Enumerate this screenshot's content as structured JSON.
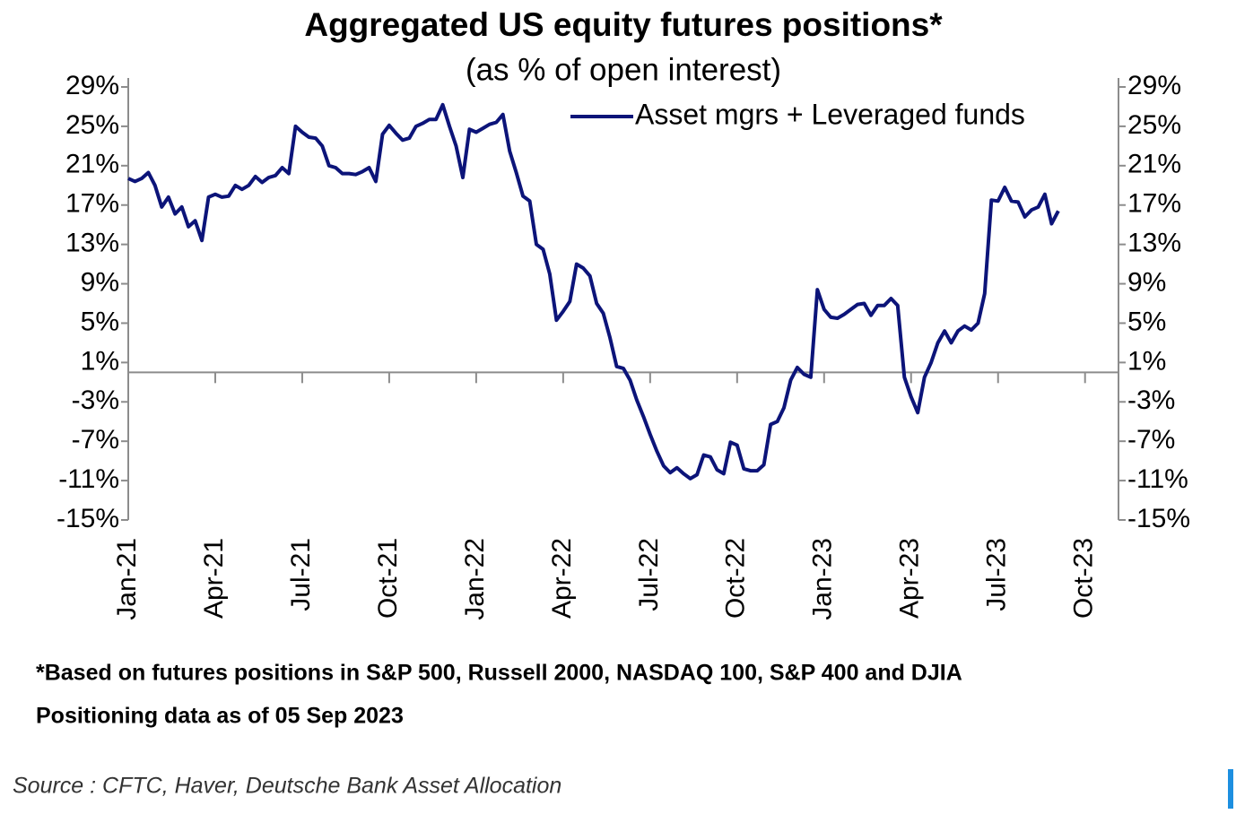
{
  "chart_data": {
    "type": "line",
    "title": "Aggregated US equity futures positions*",
    "subtitle": "(as % of open interest)",
    "categories": [
      "Jan-21",
      null,
      null,
      null,
      null,
      null,
      null,
      null,
      null,
      null,
      null,
      null,
      null,
      "Apr-21",
      null,
      null,
      null,
      null,
      null,
      null,
      null,
      null,
      null,
      null,
      null,
      null,
      "Jul-21",
      null,
      null,
      null,
      null,
      null,
      null,
      null,
      null,
      null,
      null,
      null,
      null,
      "Oct-21",
      null,
      null,
      null,
      null,
      null,
      null,
      null,
      null,
      null,
      null,
      null,
      null,
      "Jan-22",
      null,
      null,
      null,
      null,
      null,
      null,
      null,
      null,
      null,
      null,
      null,
      null,
      "Apr-22",
      null,
      null,
      null,
      null,
      null,
      null,
      null,
      null,
      null,
      null,
      null,
      null,
      "Jul-22",
      null,
      null,
      null,
      null,
      null,
      null,
      null,
      null,
      null,
      null,
      null,
      null,
      "Oct-22",
      null,
      null,
      null,
      null,
      null,
      null,
      null,
      null,
      null,
      null,
      null,
      null,
      "Jan-23",
      null,
      null,
      null,
      null,
      null,
      null,
      null,
      null,
      null,
      null,
      null,
      null,
      "Apr-23",
      null,
      null,
      null,
      null,
      null,
      null,
      null,
      null,
      null,
      null,
      null,
      null,
      "Jul-23",
      null,
      null,
      null,
      null,
      null,
      null,
      null,
      null,
      null,
      null,
      null,
      null,
      "Oct-23",
      null,
      null,
      null,
      null,
      null
    ],
    "series": [
      {
        "name": "Asset mgrs + Leveraged funds",
        "color": "#0c1479",
        "values": [
          19.7,
          19.4,
          19.7,
          20.3,
          19.0,
          16.8,
          17.8,
          16.1,
          16.8,
          14.8,
          15.4,
          13.4,
          17.8,
          18.1,
          17.8,
          17.9,
          19.0,
          18.6,
          19.0,
          19.9,
          19.3,
          19.8,
          20.0,
          20.8,
          20.2,
          25.0,
          24.4,
          23.9,
          23.8,
          23.0,
          21.0,
          20.8,
          20.2,
          20.2,
          20.1,
          20.4,
          20.8,
          19.4,
          24.2,
          25.1,
          24.3,
          23.6,
          23.8,
          25.0,
          25.3,
          25.7,
          25.7,
          27.2,
          25.0,
          23.0,
          19.8,
          24.7,
          24.4,
          24.8,
          25.2,
          25.4,
          26.2,
          22.5,
          20.3,
          17.9,
          17.4,
          13.0,
          12.5,
          10.0,
          5.3,
          6.2,
          7.2,
          11.0,
          10.6,
          9.8,
          7.0,
          6.0,
          3.5,
          0.6,
          0.4,
          -0.8,
          -2.8,
          -4.5,
          -6.3,
          -8.0,
          -9.5,
          -10.2,
          -9.7,
          -10.3,
          -10.8,
          -10.4,
          -8.4,
          -8.6,
          -9.9,
          -10.3,
          -7.1,
          -7.4,
          -9.8,
          -10.0,
          -10.0,
          -9.4,
          -5.3,
          -5.0,
          -3.6,
          -0.8,
          0.5,
          -0.2,
          -0.5,
          8.4,
          6.4,
          5.6,
          5.5,
          5.9,
          6.4,
          6.9,
          7.0,
          5.8,
          6.8,
          6.8,
          7.5,
          6.8,
          -0.5,
          -2.5,
          -4.1,
          -0.5,
          1.0,
          3.0,
          4.2,
          3.0,
          4.2,
          4.7,
          4.3,
          5.0,
          8.0,
          17.5,
          17.4,
          18.8,
          17.4,
          17.3,
          15.8,
          16.5,
          16.8,
          18.1,
          15.1,
          16.4,
          null,
          null,
          null,
          null,
          null,
          null,
          null,
          null,
          null
        ]
      }
    ],
    "ylim": [
      -15,
      29
    ],
    "yticks": [
      {
        "value": 29,
        "label": "29%"
      },
      {
        "value": 25,
        "label": "25%"
      },
      {
        "value": 21,
        "label": "21%"
      },
      {
        "value": 17,
        "label": "17%"
      },
      {
        "value": 13,
        "label": "13%"
      },
      {
        "value": 9,
        "label": "9%"
      },
      {
        "value": 5,
        "label": "5%"
      },
      {
        "value": 1,
        "label": "1%"
      },
      {
        "value": -3,
        "label": "-3%"
      },
      {
        "value": -7,
        "label": "-7%"
      },
      {
        "value": -11,
        "label": "-11%"
      },
      {
        "value": -15,
        "label": "-15%"
      }
    ],
    "y2lim": [
      -15,
      29
    ],
    "y2ticks": [
      {
        "value": 29,
        "label": "29%"
      },
      {
        "value": 25,
        "label": "25%"
      },
      {
        "value": 21,
        "label": "21%"
      },
      {
        "value": 17,
        "label": "17%"
      },
      {
        "value": 13,
        "label": "13%"
      },
      {
        "value": 9,
        "label": "9%"
      },
      {
        "value": 5,
        "label": "5%"
      },
      {
        "value": 1,
        "label": "1%"
      },
      {
        "value": -3,
        "label": "-3%"
      },
      {
        "value": -7,
        "label": "-7%"
      },
      {
        "value": -11,
        "label": "-11%"
      },
      {
        "value": -15,
        "label": "-15%"
      }
    ],
    "legend": "upper right",
    "notes": [
      "*Based on futures positions in S&P 500, Russell 2000, NASDAQ 100, S&P 400 and DJIA",
      "Positioning data as of 05 Sep 2023"
    ],
    "source": "Source : CFTC, Haver, Deutsche Bank Asset Allocation"
  }
}
